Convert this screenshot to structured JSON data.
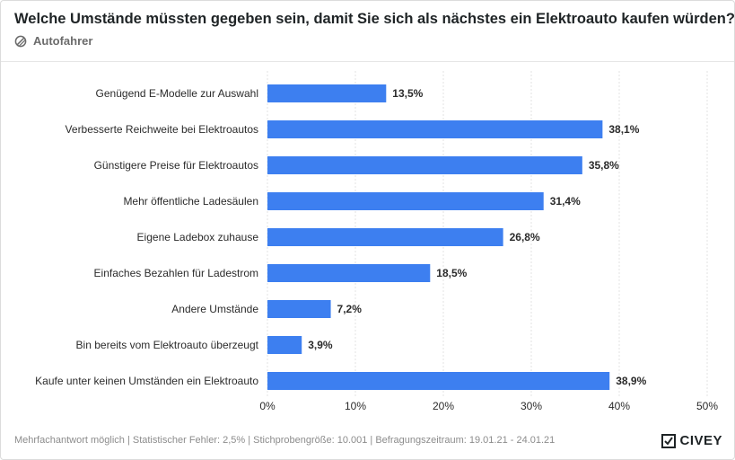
{
  "header": {
    "title": "Welche Umstände müssten gegeben sein, damit Sie sich als nächstes ein Elektroauto kaufen würden?",
    "subtitle": "Autofahrer",
    "subtitle_icon": "filter-icon"
  },
  "footer": {
    "note": "Mehrfachantwort möglich | Statistischer Fehler: 2,5% | Stichprobengröße: 10.001 | Befragungszeitraum: 19.01.21 - 24.01.21",
    "brand": "CIVEY",
    "brand_icon": "civey-logo-icon"
  },
  "colors": {
    "bar": "#3d7ff0",
    "grid": "#e3e3e3",
    "text": "#2b2b2b"
  },
  "chart_data": {
    "type": "bar",
    "orientation": "horizontal",
    "categories": [
      "Genügend E-Modelle zur Auswahl",
      "Verbesserte Reichweite bei Elektroautos",
      "Günstigere Preise für Elektroautos",
      "Mehr öffentliche Ladesäulen",
      "Eigene Ladebox zuhause",
      "Einfaches Bezahlen für Ladestrom",
      "Andere Umstände",
      "Bin bereits vom Elektroauto überzeugt",
      "Kaufe unter keinen Umständen ein Elektroauto"
    ],
    "values": [
      13.5,
      38.1,
      35.8,
      31.4,
      26.8,
      18.5,
      7.2,
      3.9,
      38.9
    ],
    "value_labels": [
      "13,5%",
      "38,1%",
      "35,8%",
      "31,4%",
      "26,8%",
      "18,5%",
      "7,2%",
      "3,9%",
      "38,9%"
    ],
    "xlim": [
      0,
      50
    ],
    "xticks": [
      0,
      10,
      20,
      30,
      40,
      50
    ],
    "xtick_labels": [
      "0%",
      "10%",
      "20%",
      "30%",
      "40%",
      "50%"
    ],
    "grid": true
  }
}
